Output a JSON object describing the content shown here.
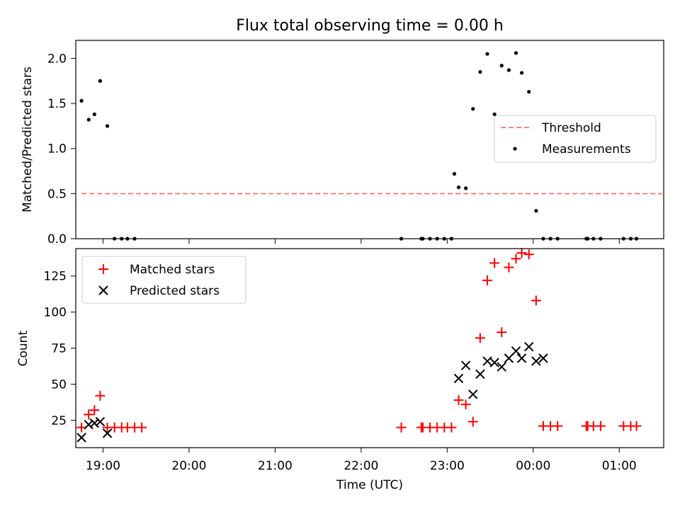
{
  "chart_data": [
    {
      "type": "scatter",
      "title": "Flux total observing time = 0.00 h",
      "xlabel": "",
      "ylabel": "Matched/Predicted stars",
      "xlim": [
        "18:41",
        "01:31"
      ],
      "ylim": [
        0,
        2.2
      ],
      "yticks": [
        0.0,
        0.5,
        1.0,
        1.5,
        2.0
      ],
      "ytick_labels": [
        "0.0",
        "0.5",
        "1.0",
        "1.5",
        "2.0"
      ],
      "legend_position": "right",
      "series": [
        {
          "name": "Threshold",
          "style": "dashed-line",
          "color": "#ff7f7f",
          "x": [
            "18:45",
            "01:30"
          ],
          "y": [
            0.5,
            0.5
          ]
        },
        {
          "name": "Measurements",
          "style": "dot",
          "color": "#000000",
          "x": [
            "18:45",
            "18:50",
            "18:54",
            "18:58",
            "19:03",
            "19:08",
            "19:13",
            "19:17",
            "19:22",
            "22:28",
            "22:42",
            "22:43",
            "22:48",
            "22:53",
            "22:58",
            "23:03",
            "23:05",
            "23:08",
            "23:13",
            "23:18",
            "23:23",
            "23:28",
            "23:33",
            "23:38",
            "23:43",
            "23:48",
            "23:52",
            "23:57",
            "00:02",
            "00:07",
            "00:12",
            "00:17",
            "00:37",
            "00:38",
            "00:42",
            "00:47",
            "01:03",
            "01:08",
            "01:12"
          ],
          "y": [
            1.53,
            1.32,
            1.38,
            1.75,
            1.25,
            0.0,
            0.0,
            0.0,
            0.0,
            0.0,
            0.0,
            0.0,
            0.0,
            0.0,
            0.0,
            0.0,
            0.72,
            0.57,
            0.56,
            1.44,
            1.85,
            2.05,
            1.38,
            1.92,
            1.87,
            2.06,
            1.84,
            1.63,
            0.31,
            0.0,
            0.0,
            0.0,
            0.0,
            0.0,
            0.0,
            0.0,
            0.0,
            0.0,
            0.0
          ]
        }
      ]
    },
    {
      "type": "scatter",
      "title": "",
      "xlabel": "Time (UTC)",
      "ylabel": "Count",
      "xlim": [
        "18:41",
        "01:31"
      ],
      "ylim": [
        6,
        144
      ],
      "yticks": [
        25,
        50,
        75,
        100,
        125
      ],
      "ytick_labels": [
        "25",
        "50",
        "75",
        "100",
        "125"
      ],
      "xticks": [
        "19:00",
        "20:00",
        "21:00",
        "22:00",
        "23:00",
        "00:00",
        "01:00"
      ],
      "legend_position": "upper-left",
      "series": [
        {
          "name": "Matched stars",
          "marker": "plus",
          "color": "#ff0000",
          "x": [
            "18:45",
            "18:50",
            "18:54",
            "18:58",
            "19:03",
            "19:08",
            "19:13",
            "19:17",
            "19:22",
            "19:27",
            "22:28",
            "22:42",
            "22:43",
            "22:48",
            "22:53",
            "22:58",
            "23:03",
            "23:08",
            "23:13",
            "23:18",
            "23:23",
            "23:28",
            "23:33",
            "23:38",
            "23:43",
            "23:48",
            "23:52",
            "23:57",
            "00:02",
            "00:07",
            "00:12",
            "00:17",
            "00:37",
            "00:38",
            "00:42",
            "00:47",
            "01:03",
            "01:08",
            "01:12"
          ],
          "y": [
            20,
            29,
            32,
            42,
            20,
            20,
            20,
            20,
            20,
            20,
            20,
            20,
            20,
            20,
            20,
            20,
            20,
            39,
            36,
            24,
            82,
            122,
            134,
            86,
            131,
            137,
            141,
            140,
            108,
            21,
            21,
            21,
            21,
            21,
            21,
            21,
            21,
            21,
            21
          ]
        },
        {
          "name": "Predicted stars",
          "marker": "x",
          "color": "#000000",
          "x": [
            "18:45",
            "18:50",
            "18:54",
            "18:58",
            "19:03",
            "23:08",
            "23:13",
            "23:18",
            "23:23",
            "23:28",
            "23:33",
            "23:38",
            "23:43",
            "23:48",
            "23:52",
            "23:57",
            "00:02",
            "00:07"
          ],
          "y": [
            13,
            22,
            23,
            24,
            16,
            54,
            63,
            43,
            57,
            66,
            65,
            62,
            68,
            73,
            68,
            76,
            66,
            68
          ]
        }
      ]
    }
  ]
}
